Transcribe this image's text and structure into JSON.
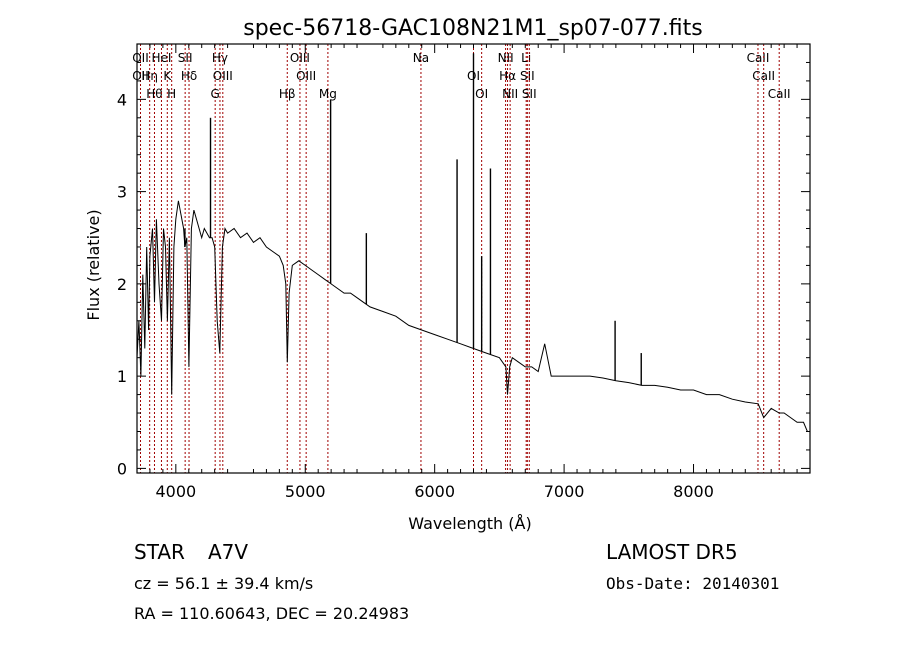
{
  "chart_data": {
    "type": "line",
    "title": "spec-56718-GAC108N21M1_sp07-077.fits",
    "xlabel": "Wavelength (Å)",
    "ylabel": "Flux (relative)",
    "xlim": [
      3700,
      8900
    ],
    "ylim": [
      -0.05,
      4.6
    ],
    "x_ticks": [
      4000,
      5000,
      6000,
      7000,
      8000
    ],
    "y_ticks": [
      0,
      1,
      2,
      3,
      4
    ],
    "x_tick_labels": [
      "4000",
      "5000",
      "6000",
      "7000",
      "8000"
    ],
    "y_tick_labels": [
      "0",
      "1",
      "2",
      "3",
      "4"
    ],
    "grid": false,
    "series": [
      {
        "x": [
          3700,
          3715,
          3730,
          3745,
          3760,
          3775,
          3790,
          3800,
          3820,
          3835,
          3850,
          3870,
          3889,
          3905,
          3920,
          3935,
          3950,
          3968,
          3985,
          4000,
          4020,
          4040,
          4060,
          4070,
          4085,
          4101,
          4120,
          4140,
          4160,
          4180,
          4200,
          4220,
          4240,
          4260,
          4280,
          4300,
          4320,
          4340,
          4360,
          4380,
          4400,
          4450,
          4500,
          4550,
          4600,
          4650,
          4700,
          4750,
          4800,
          4830,
          4850,
          4861,
          4875,
          4900,
          4950,
          5000,
          5050,
          5100,
          5150,
          5200,
          5250,
          5300,
          5350,
          5400,
          5450,
          5500,
          5600,
          5700,
          5800,
          5900,
          6000,
          6100,
          6200,
          6300,
          6400,
          6500,
          6550,
          6563,
          6580,
          6600,
          6650,
          6700,
          6750,
          6800,
          6850,
          6900,
          7000,
          7100,
          7200,
          7300,
          7400,
          7500,
          7600,
          7700,
          7800,
          7900,
          8000,
          8100,
          8200,
          8300,
          8400,
          8500,
          8542,
          8600,
          8662,
          8700,
          8750,
          8800,
          8850,
          8880
        ],
        "y": [
          1.2,
          1.6,
          1.0,
          2.1,
          1.3,
          2.4,
          1.5,
          2.3,
          2.6,
          1.8,
          2.7,
          2.0,
          1.6,
          2.6,
          2.4,
          1.6,
          2.5,
          0.8,
          2.4,
          2.7,
          2.9,
          2.75,
          2.6,
          2.4,
          2.5,
          1.1,
          2.6,
          2.8,
          2.7,
          2.6,
          2.5,
          2.6,
          2.55,
          2.5,
          2.5,
          2.4,
          1.6,
          1.25,
          2.4,
          2.6,
          2.55,
          2.6,
          2.5,
          2.55,
          2.45,
          2.5,
          2.4,
          2.35,
          2.3,
          2.2,
          2.0,
          1.15,
          1.9,
          2.2,
          2.25,
          2.2,
          2.15,
          2.1,
          2.05,
          2.0,
          1.95,
          1.9,
          1.9,
          1.85,
          1.8,
          1.75,
          1.7,
          1.65,
          1.55,
          1.5,
          1.45,
          1.4,
          1.35,
          1.3,
          1.25,
          1.2,
          1.1,
          0.8,
          1.1,
          1.2,
          1.15,
          1.1,
          1.1,
          1.05,
          1.35,
          1.0,
          1.0,
          1.0,
          1.0,
          0.98,
          0.95,
          0.93,
          0.9,
          0.9,
          0.88,
          0.85,
          0.85,
          0.8,
          0.8,
          0.75,
          0.72,
          0.7,
          0.55,
          0.65,
          0.6,
          0.6,
          0.55,
          0.5,
          0.5,
          0.4
        ]
      }
    ],
    "spikes": [
      {
        "x": 4070,
        "y": 2.6
      },
      {
        "x": 4268,
        "y": 3.8
      },
      {
        "x": 5196,
        "y": 4.0
      },
      {
        "x": 5472,
        "y": 2.55
      },
      {
        "x": 6173,
        "y": 3.35
      },
      {
        "x": 6300,
        "y": 4.5
      },
      {
        "x": 6363,
        "y": 2.3
      },
      {
        "x": 6431,
        "y": 3.25
      },
      {
        "x": 7394,
        "y": 1.6
      },
      {
        "x": 7596,
        "y": 1.25
      }
    ],
    "line_markers": [
      {
        "x": 3727,
        "labels": [
          "OII",
          "OII"
        ]
      },
      {
        "x": 3798,
        "labels": [
          "Hη"
        ]
      },
      {
        "x": 3835,
        "labels": [
          "Hθ"
        ]
      },
      {
        "x": 3889,
        "labels": [
          "HeI"
        ]
      },
      {
        "x": 3934,
        "labels": [
          "K"
        ]
      },
      {
        "x": 3968,
        "labels": [
          "H"
        ]
      },
      {
        "x": 4072,
        "labels": [
          "SII"
        ]
      },
      {
        "x": 4102,
        "labels": [
          "Hδ"
        ]
      },
      {
        "x": 4304,
        "labels": [
          "G"
        ]
      },
      {
        "x": 4341,
        "labels": [
          "Hγ"
        ]
      },
      {
        "x": 4363,
        "labels": [
          "OIII"
        ]
      },
      {
        "x": 4861,
        "labels": [
          "Hβ"
        ]
      },
      {
        "x": 4959,
        "labels": [
          "OIII"
        ]
      },
      {
        "x": 5007,
        "labels": [
          "OIII"
        ]
      },
      {
        "x": 5175,
        "labels": [
          "Mg"
        ]
      },
      {
        "x": 5894,
        "labels": [
          "Na"
        ]
      },
      {
        "x": 6300,
        "labels": [
          "OI"
        ]
      },
      {
        "x": 6363,
        "labels": [
          "OI"
        ]
      },
      {
        "x": 6548,
        "labels": [
          "NII"
        ]
      },
      {
        "x": 6563,
        "labels": [
          "Hα"
        ]
      },
      {
        "x": 6583,
        "labels": [
          "NII"
        ]
      },
      {
        "x": 6707,
        "labels": [
          "Li"
        ]
      },
      {
        "x": 6716,
        "labels": [
          "SII"
        ]
      },
      {
        "x": 6731,
        "labels": [
          "SII"
        ]
      },
      {
        "x": 8498,
        "labels": [
          "CaII"
        ]
      },
      {
        "x": 8542,
        "labels": [
          "CaII"
        ]
      },
      {
        "x": 8662,
        "labels": [
          "CaII"
        ]
      }
    ],
    "colors": {
      "spectrum": "#000000",
      "markers": "#a00000",
      "axes": "#000000"
    }
  },
  "info": {
    "class": "STAR",
    "subclass": "A7V",
    "survey": "LAMOST DR5",
    "cz": "cz = 56.1 ± 39.4 km/s",
    "obs_date": "Obs-Date: 20140301",
    "coords": "RA = 110.60643, DEC =  20.24983"
  }
}
